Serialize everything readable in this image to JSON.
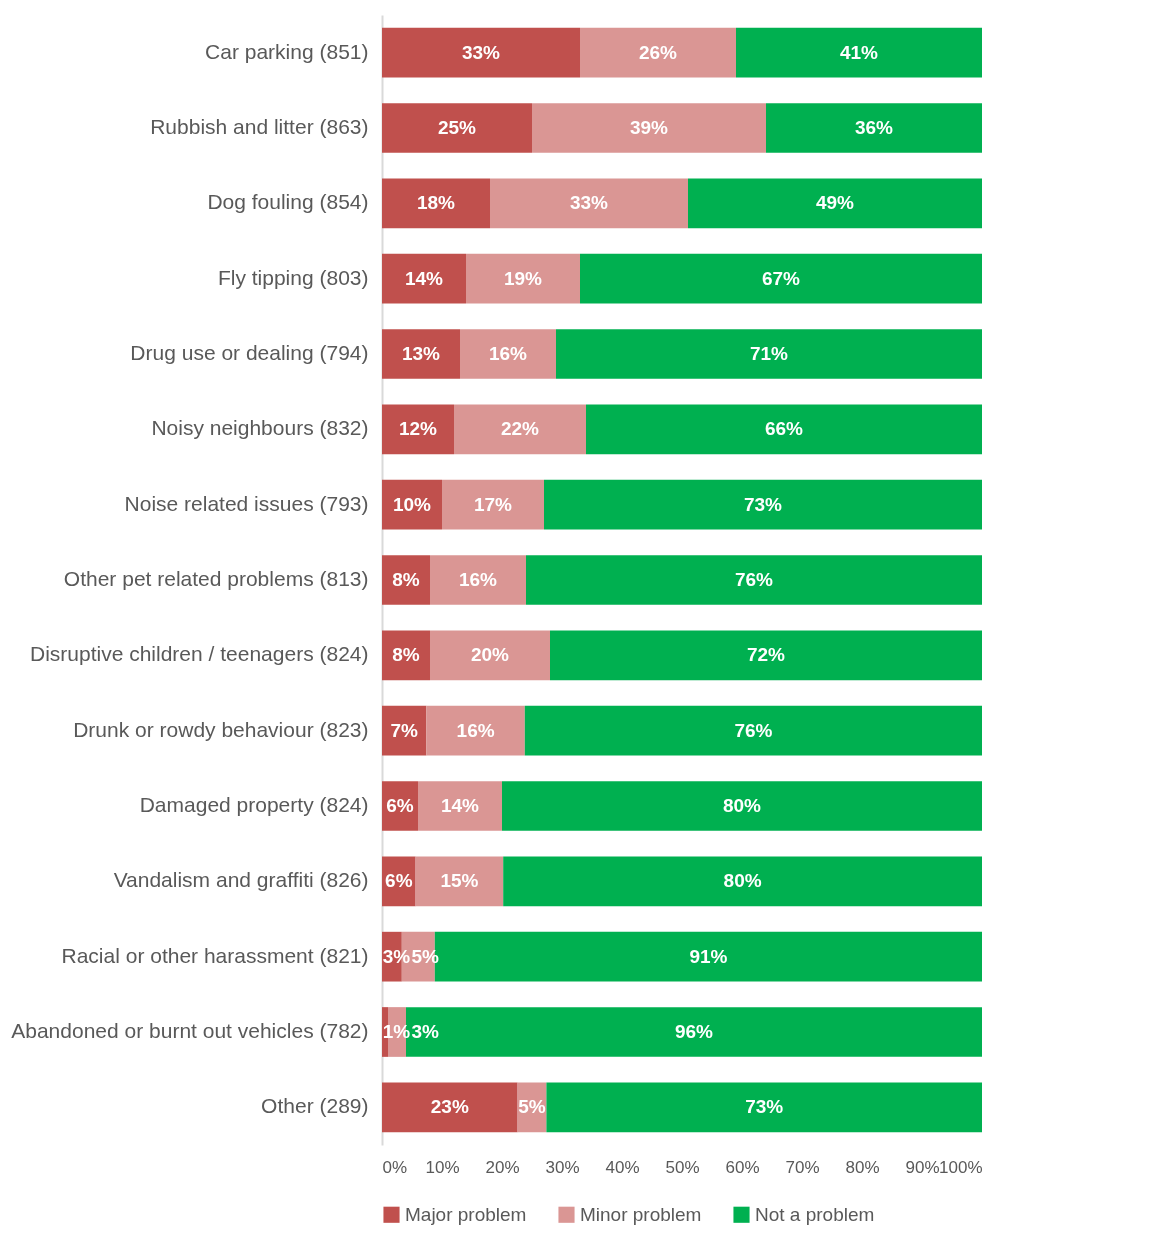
{
  "chart_data": {
    "type": "bar",
    "orientation": "horizontal",
    "stacked": true,
    "categories": [
      "Car parking (851)",
      "Rubbish and litter (863)",
      "Dog fouling (854)",
      "Fly tipping (803)",
      "Drug use or dealing (794)",
      "Noisy neighbours (832)",
      "Noise related issues (793)",
      "Other pet related problems (813)",
      "Disruptive children / teenagers (824)",
      "Drunk or rowdy behaviour (823)",
      "Damaged property (824)",
      "Vandalism and graffiti (826)",
      "Racial or other harassment (821)",
      "Abandoned or burnt out vehicles (782)",
      "Other (289)"
    ],
    "series": [
      {
        "name": "Major problem",
        "color": "#c0504d",
        "values": [
          33,
          25,
          18,
          14,
          13,
          12,
          10,
          8,
          8,
          7.4,
          6,
          5.6,
          3.3,
          1,
          22.6
        ],
        "value_labels": [
          "33%",
          "25%",
          "18%",
          "14%",
          "13%",
          "12%",
          "10%",
          "8%",
          "8%",
          "7%",
          "6%",
          "6%",
          "3%",
          "1%",
          "23%"
        ]
      },
      {
        "name": "Minor problem",
        "color": "#da9694",
        "values": [
          26,
          39,
          33,
          19,
          16,
          22,
          17,
          16,
          20,
          16.4,
          14,
          14.6,
          5.5,
          3,
          4.8
        ],
        "value_labels": [
          "26%",
          "39%",
          "33%",
          "19%",
          "16%",
          "22%",
          "17%",
          "16%",
          "20%",
          "16%",
          "14%",
          "15%",
          "5%",
          "3%",
          "5%"
        ]
      },
      {
        "name": "Not a problem",
        "color": "#00b050",
        "values": [
          41,
          36,
          49,
          67,
          71,
          66,
          73,
          76,
          72,
          76.2,
          80,
          79.8,
          91.2,
          96,
          72.6
        ],
        "value_labels": [
          "41%",
          "36%",
          "49%",
          "67%",
          "71%",
          "66%",
          "73%",
          "76%",
          "72%",
          "76%",
          "80%",
          "80%",
          "91%",
          "96%",
          "73%"
        ]
      }
    ],
    "xlim": [
      0,
      100
    ],
    "xticks": [
      {
        "value": 0,
        "label": "0%"
      },
      {
        "value": 10,
        "label": "10%"
      },
      {
        "value": 20,
        "label": "20%"
      },
      {
        "value": 30,
        "label": "30%"
      },
      {
        "value": 40,
        "label": "40%"
      },
      {
        "value": 50,
        "label": "50%"
      },
      {
        "value": 60,
        "label": "60%"
      },
      {
        "value": 70,
        "label": "70%"
      },
      {
        "value": 80,
        "label": "80%"
      },
      {
        "value": 90,
        "label": "90%"
      },
      {
        "value": 100,
        "label": "100%"
      }
    ],
    "grid": false,
    "legend": "bottom"
  }
}
